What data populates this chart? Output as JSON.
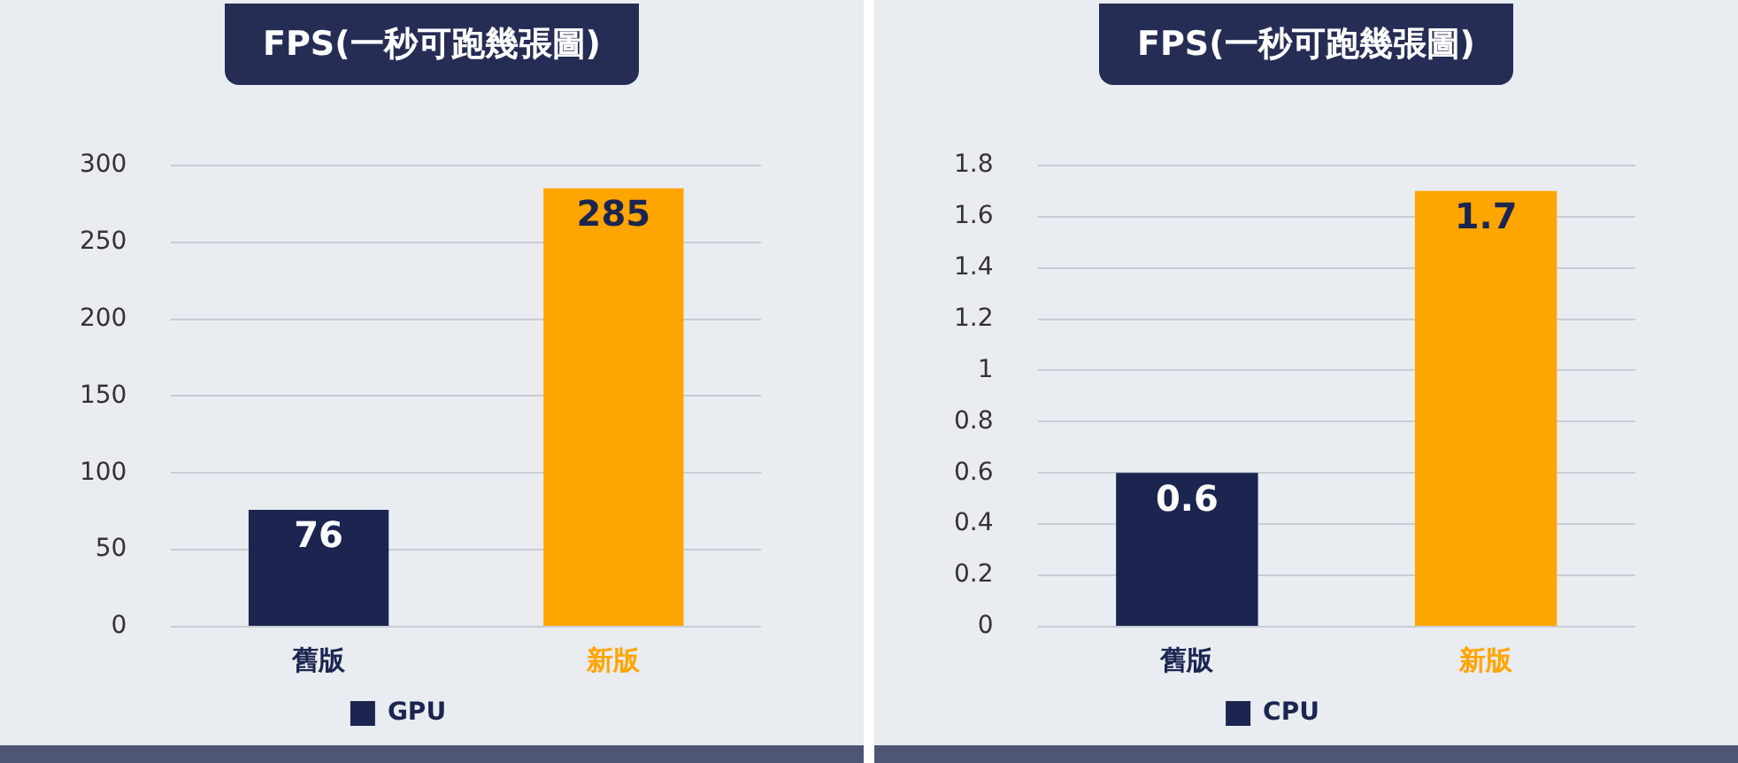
{
  "chart_data": [
    {
      "type": "bar",
      "title": "FPS(一秒可跑幾張圖)",
      "categories": [
        "舊版",
        "新版"
      ],
      "series": [
        {
          "name": "GPU",
          "colors": [
            "#1b2550",
            "#ffa500"
          ],
          "values": [
            76,
            285
          ]
        }
      ],
      "ylim": [
        0,
        300
      ],
      "yticks": [
        0,
        50,
        100,
        150,
        200,
        250,
        300
      ],
      "grid": "y",
      "legend": "bottom",
      "data_labels": true
    },
    {
      "type": "bar",
      "title": "FPS(一秒可跑幾張圖)",
      "categories": [
        "舊版",
        "新版"
      ],
      "series": [
        {
          "name": "CPU",
          "colors": [
            "#1b2550",
            "#ffa500"
          ],
          "values": [
            0.6,
            1.7
          ]
        }
      ],
      "ylim": [
        0,
        1.8
      ],
      "yticks": [
        0,
        0.2,
        0.4,
        0.6,
        0.8,
        1,
        1.2,
        1.4,
        1.6,
        1.8
      ],
      "grid": "y",
      "legend": "bottom",
      "data_labels": true
    }
  ]
}
